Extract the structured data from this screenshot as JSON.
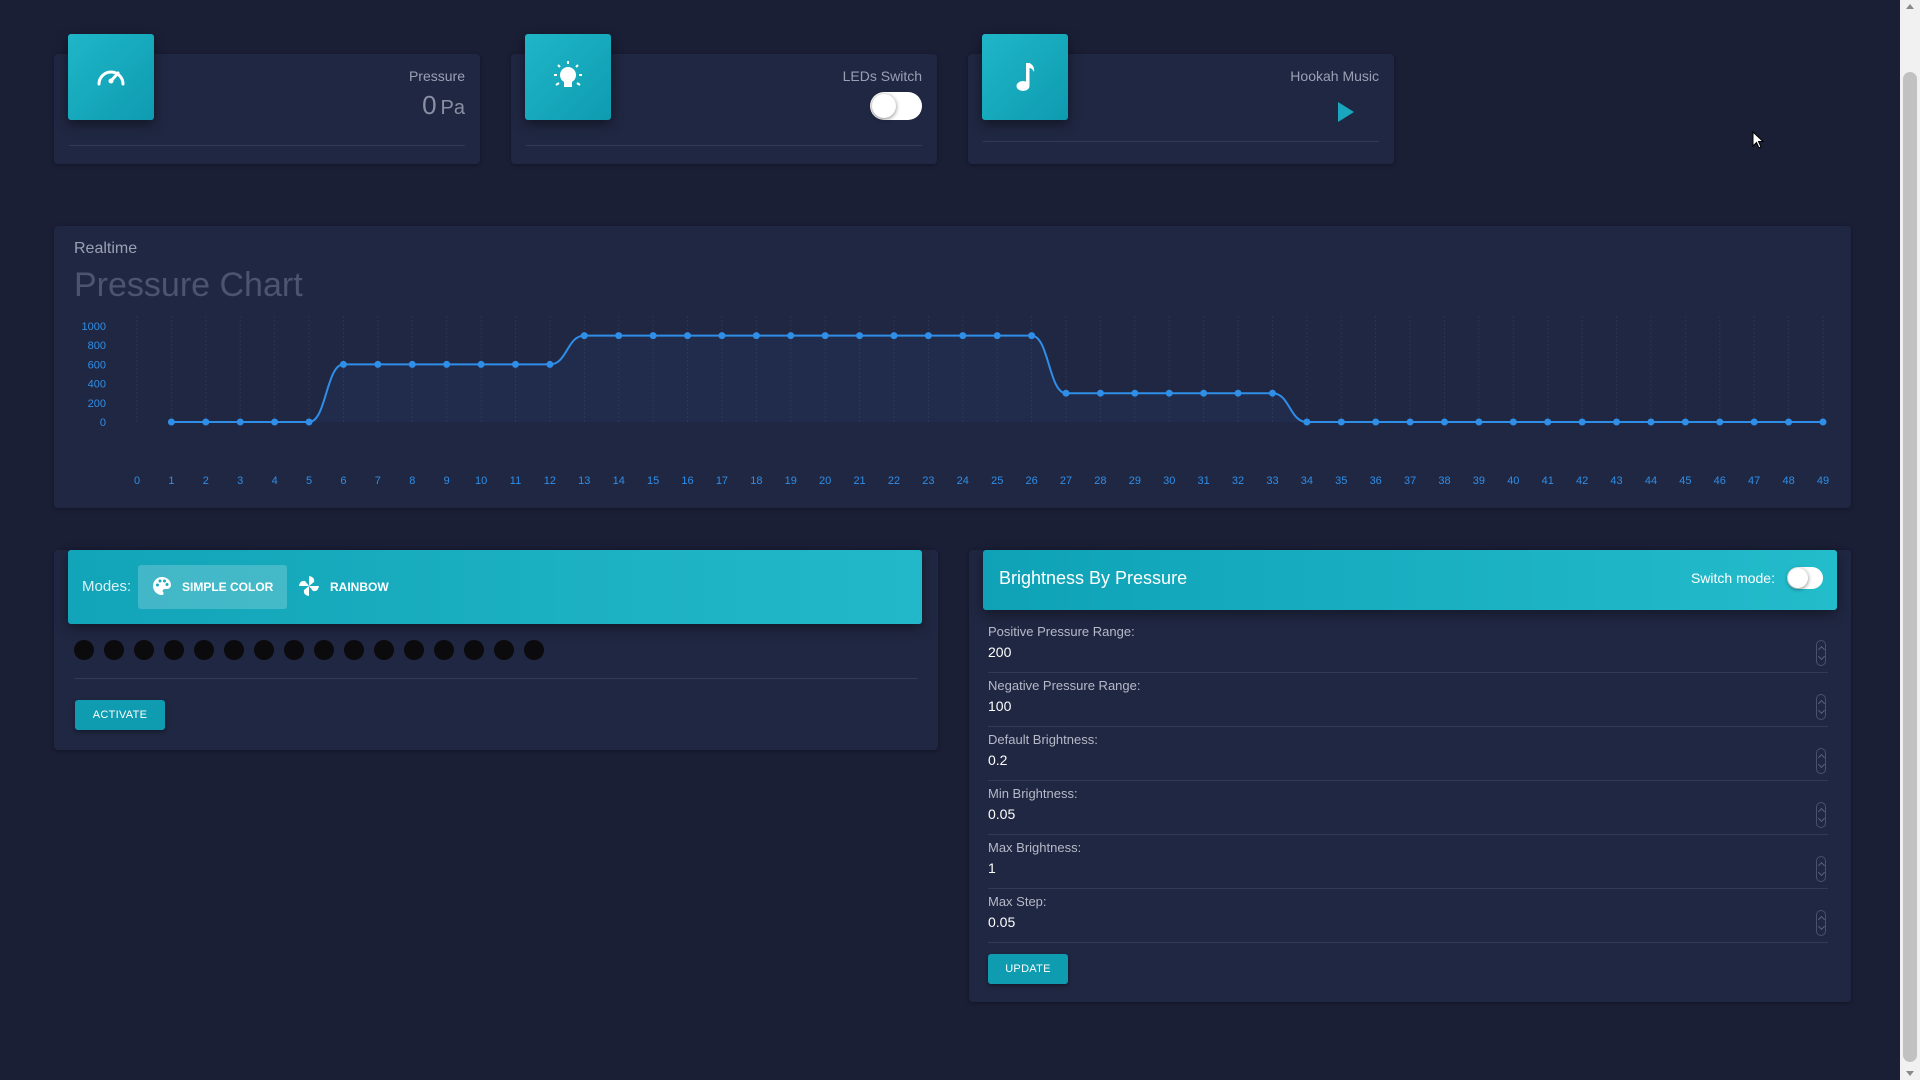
{
  "stats": {
    "pressure": {
      "label": "Pressure",
      "value": "0",
      "unit": "Pa",
      "icon": "speedometer-icon"
    },
    "leds": {
      "label": "LEDs Switch",
      "on": false,
      "icon": "lightbulb-icon"
    },
    "music": {
      "label": "Hookah Music",
      "icon": "music-note-icon",
      "action": "play-icon"
    }
  },
  "chart": {
    "subtitle": "Realtime",
    "title": "Pressure Chart"
  },
  "chart_data": {
    "type": "line",
    "x": [
      1,
      2,
      3,
      4,
      5,
      6,
      7,
      8,
      9,
      10,
      11,
      12,
      13,
      14,
      15,
      16,
      17,
      18,
      19,
      20,
      21,
      22,
      23,
      24,
      25,
      26,
      27,
      28,
      29,
      30,
      31,
      32,
      33,
      34,
      35,
      36,
      37,
      38,
      39,
      40,
      41,
      42,
      43,
      44,
      45,
      46,
      47,
      48,
      49
    ],
    "values": [
      0,
      0,
      0,
      0,
      0,
      600,
      600,
      600,
      600,
      600,
      600,
      600,
      900,
      900,
      900,
      900,
      900,
      900,
      900,
      900,
      900,
      900,
      900,
      900,
      900,
      900,
      300,
      300,
      300,
      300,
      300,
      300,
      300,
      0,
      0,
      0,
      0,
      0,
      0,
      0,
      0,
      0,
      0,
      0,
      0,
      0,
      0,
      0,
      0
    ],
    "x_ticks": [
      0,
      1,
      2,
      3,
      4,
      5,
      6,
      7,
      8,
      9,
      10,
      11,
      12,
      13,
      14,
      15,
      16,
      17,
      18,
      19,
      20,
      21,
      22,
      23,
      24,
      25,
      26,
      27,
      28,
      29,
      30,
      31,
      32,
      33,
      34,
      35,
      36,
      37,
      38,
      39,
      40,
      41,
      42,
      43,
      44,
      45,
      46,
      47,
      48,
      49
    ],
    "y_ticks": [
      0,
      200,
      400,
      600,
      800,
      1000
    ],
    "ylim": [
      0,
      1000
    ],
    "xlim": [
      0,
      49
    ],
    "grid": true,
    "color": "#2f8ee8"
  },
  "modes": {
    "label": "Modes:",
    "tabs": [
      {
        "label": "SIMPLE COLOR",
        "icon": "palette-icon",
        "active": true
      },
      {
        "label": "RAINBOW",
        "icon": "pinwheel-icon",
        "active": false
      }
    ],
    "colors": [
      "#0b0b0d",
      "#0b0b0d",
      "#0b0b0d",
      "#0b0b0d",
      "#0b0b0d",
      "#0b0b0d",
      "#0b0b0d",
      "#0b0b0d",
      "#0b0b0d",
      "#0b0b0d",
      "#0b0b0d",
      "#0b0b0d",
      "#0b0b0d",
      "#0b0b0d",
      "#0b0b0d",
      "#0b0b0d"
    ],
    "activate_label": "ACTIVATE"
  },
  "brightness": {
    "title": "Brightness By Pressure",
    "switch_label": "Switch mode:",
    "fields": [
      {
        "label": "Positive Pressure Range:",
        "value": "200"
      },
      {
        "label": "Negative Pressure Range:",
        "value": "100"
      },
      {
        "label": "Default Brightness:",
        "value": "0.2"
      },
      {
        "label": "Min Brightness:",
        "value": "0.05"
      },
      {
        "label": "Max Brightness:",
        "value": "1"
      },
      {
        "label": "Max Step:",
        "value": "0.05"
      }
    ],
    "update_label": "UPDATE"
  },
  "colors": {
    "accent": "#1aa7bd",
    "background": "#1b1f36",
    "card": "#202742"
  }
}
